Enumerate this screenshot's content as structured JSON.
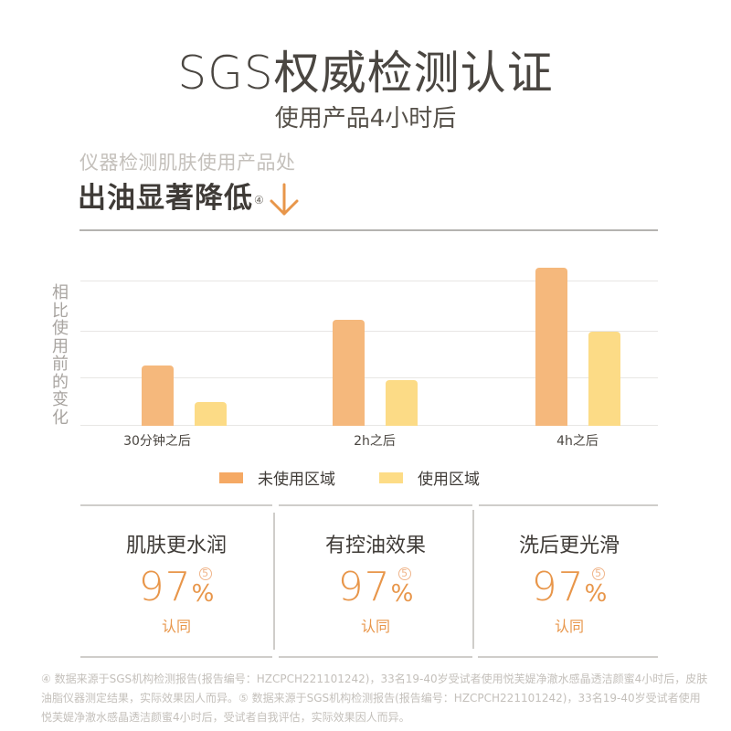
{
  "header": {
    "title": "SGS权威检测认证",
    "subtitle": "使用产品4小时后"
  },
  "claim": {
    "lead": "仪器检测肌肤使用产品处",
    "headline": "出油显著降低",
    "footnote_marker": "④",
    "arrow_icon": "arrow-down-icon"
  },
  "colors": {
    "accent": "#e8964a",
    "unused_area": "#f5b87c",
    "used_area": "#fcdb86",
    "text_dark": "#3f3b37",
    "text_muted": "#c4c0bb"
  },
  "chart_data": {
    "type": "bar",
    "title": "出油显著降低",
    "xlabel": "",
    "ylabel": "相比使用前的变化",
    "categories": [
      "30分钟之后",
      "2h之后",
      "4h之后"
    ],
    "series": [
      {
        "name": "未使用区域",
        "color": "#f5b87c",
        "values": [
          1.25,
          2.2,
          3.3
        ]
      },
      {
        "name": "使用区域",
        "color": "#fcdb86",
        "values": [
          0.5,
          0.96,
          1.97
        ]
      }
    ],
    "ylim": [
      0,
      3.4
    ],
    "grid": true,
    "gridlines": [
      0,
      1,
      2,
      3
    ],
    "y_tick_labels_shown": false,
    "legend_position": "bottom"
  },
  "legend": [
    {
      "label": "未使用区域",
      "color": "#f5b87c"
    },
    {
      "label": "使用区域",
      "color": "#fcdb86"
    }
  ],
  "stats": [
    {
      "title": "肌肤更水润",
      "value": "97",
      "unit": "%",
      "marker": "5",
      "caption": "认同"
    },
    {
      "title": "有控油效果",
      "value": "97",
      "unit": "%",
      "marker": "5",
      "caption": "认同"
    },
    {
      "title": "洗后更光滑",
      "value": "97",
      "unit": "%",
      "marker": "5",
      "caption": "认同"
    }
  ],
  "footnote": "④ 数据来源于SGS机构检测报告(报告编号：HZCPCH221101242)，33名19-40岁受试者使用悦芙媞净澈水感晶透洁颜蜜4小时后，皮肤油脂仪器测定结果，实际效果因人而异。⑤ 数据来源于SGS机构检测报告(报告编号：HZCPCH221101242)，33名19-40岁受试者使用悦芙媞净澈水感晶透洁颜蜜4小时后，受试者自我评估，实际效果因人而异。"
}
